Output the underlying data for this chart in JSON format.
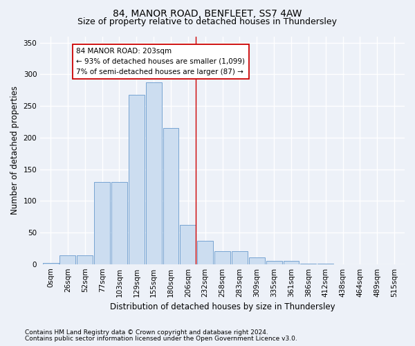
{
  "title": "84, MANOR ROAD, BENFLEET, SS7 4AW",
  "subtitle": "Size of property relative to detached houses in Thundersley",
  "xlabel": "Distribution of detached houses by size in Thundersley",
  "ylabel": "Number of detached properties",
  "footnote1": "Contains HM Land Registry data © Crown copyright and database right 2024.",
  "footnote2": "Contains public sector information licensed under the Open Government Licence v3.0.",
  "bar_labels": [
    "0sqm",
    "26sqm",
    "52sqm",
    "77sqm",
    "103sqm",
    "129sqm",
    "155sqm",
    "180sqm",
    "206sqm",
    "232sqm",
    "258sqm",
    "283sqm",
    "309sqm",
    "335sqm",
    "361sqm",
    "386sqm",
    "412sqm",
    "438sqm",
    "464sqm",
    "489sqm",
    "515sqm"
  ],
  "bar_values": [
    2,
    14,
    14,
    130,
    130,
    268,
    287,
    215,
    62,
    37,
    20,
    20,
    11,
    5,
    5,
    1,
    1,
    0,
    0,
    0,
    0
  ],
  "bar_color": "#ccddf0",
  "bar_edge_color": "#6699cc",
  "annotation_text": "84 MANOR ROAD: 203sqm\n← 93% of detached houses are smaller (1,099)\n7% of semi-detached houses are larger (87) →",
  "vline_x": 8.45,
  "vline_color": "#cc0000",
  "annotation_box_color": "#ffffff",
  "annotation_box_edge": "#cc0000",
  "ylim": [
    0,
    360
  ],
  "yticks": [
    0,
    50,
    100,
    150,
    200,
    250,
    300,
    350
  ],
  "background_color": "#edf1f8",
  "grid_color": "#ffffff",
  "title_fontsize": 10,
  "subtitle_fontsize": 9,
  "xlabel_fontsize": 8.5,
  "ylabel_fontsize": 8.5,
  "footnote_fontsize": 6.5,
  "tick_fontsize": 7.5
}
